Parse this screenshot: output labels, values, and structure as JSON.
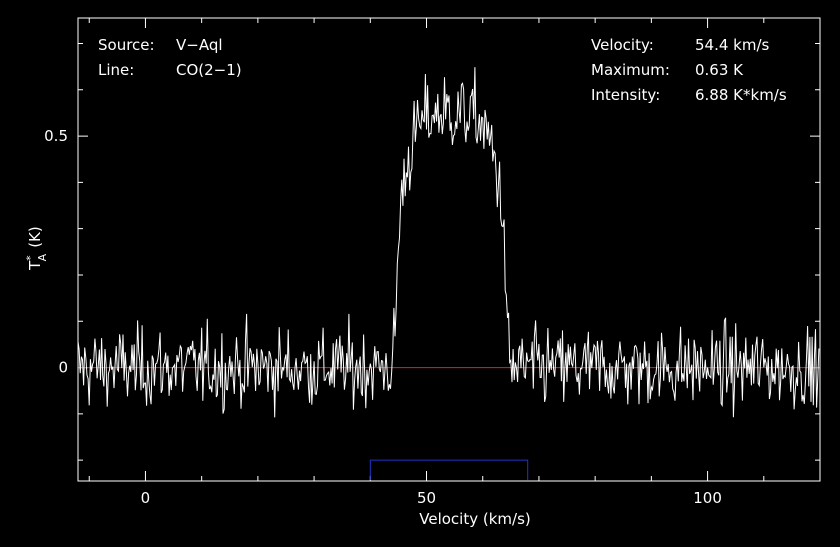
{
  "chart_data": {
    "type": "line",
    "xlabel": "Velocity (km/s)",
    "ylabel_main": "T",
    "ylabel_sub": "A",
    "ylabel_sup": "*",
    "ylabel_unit": "(K)",
    "xlim": [
      -12,
      120
    ],
    "ylim": [
      -0.245,
      0.755
    ],
    "x_ticks": [
      {
        "value": 0,
        "label": "0"
      },
      {
        "value": 50,
        "label": "50"
      },
      {
        "value": 100,
        "label": "100"
      }
    ],
    "y_ticks": [
      {
        "value": 0,
        "label": "0"
      },
      {
        "value": 0.5,
        "label": "0.5"
      }
    ],
    "baseline": {
      "value": 0,
      "color": "#dd2222"
    },
    "integration_window": {
      "x": [
        40,
        68
      ],
      "y": -0.2,
      "color": "#2233cc"
    },
    "info_left": [
      {
        "key": "Source:",
        "value": "V−Aql"
      },
      {
        "key": "Line:",
        "value": "CO(2−1)"
      }
    ],
    "info_right": [
      {
        "key": "Velocity:",
        "value": "54.4 km/s"
      },
      {
        "key": "Maximum:",
        "value": "0.63 K"
      },
      {
        "key": "Intensity:",
        "value": "6.88 K*km/s"
      }
    ],
    "line_profile": {
      "center": 54.4,
      "halfwidth": 9,
      "peak": 0.55
    },
    "noise": {
      "sigma": 0.06,
      "step": 0.2
    },
    "series": [
      {
        "color": "#ffffff"
      }
    ],
    "colors": {
      "axis": "#ffffff",
      "background": "#000000"
    }
  }
}
